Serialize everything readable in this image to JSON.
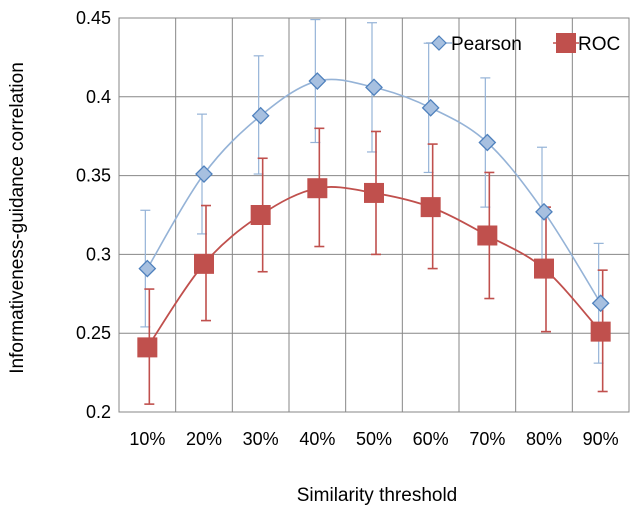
{
  "chart_data": {
    "type": "line",
    "xlabel": "Similarity threshold",
    "ylabel": "Informativeness-guidance correlation",
    "categories": [
      "10%",
      "20%",
      "30%",
      "40%",
      "50%",
      "60%",
      "70%",
      "80%",
      "90%"
    ],
    "ylim": [
      0.2,
      0.45
    ],
    "yticks": [
      0.2,
      0.25,
      0.3,
      0.35,
      0.4,
      0.45
    ],
    "ytick_labels": [
      "0.2",
      "0.25",
      "0.3",
      "0.35",
      "0.4",
      "0.45"
    ],
    "grid": true,
    "legend_position": "top-right",
    "series": [
      {
        "name": "Pearson",
        "marker": "diamond",
        "color": "#4f81bd",
        "line_color": "#95b3d7",
        "values": [
          0.291,
          0.351,
          0.388,
          0.41,
          0.406,
          0.393,
          0.371,
          0.327,
          0.269
        ],
        "error_low": [
          0.254,
          0.313,
          0.351,
          0.371,
          0.365,
          0.352,
          0.33,
          0.287,
          0.231
        ],
        "error_high": [
          0.328,
          0.389,
          0.426,
          0.449,
          0.447,
          0.434,
          0.412,
          0.368,
          0.307
        ]
      },
      {
        "name": "ROC",
        "marker": "square",
        "color": "#c0504d",
        "line_color": "#c0504d",
        "values": [
          0.241,
          0.294,
          0.325,
          0.342,
          0.339,
          0.33,
          0.312,
          0.291,
          0.251
        ],
        "error_low": [
          0.205,
          0.258,
          0.289,
          0.305,
          0.3,
          0.291,
          0.272,
          0.251,
          0.213
        ],
        "error_high": [
          0.278,
          0.331,
          0.361,
          0.38,
          0.378,
          0.37,
          0.352,
          0.33,
          0.29
        ]
      }
    ]
  }
}
